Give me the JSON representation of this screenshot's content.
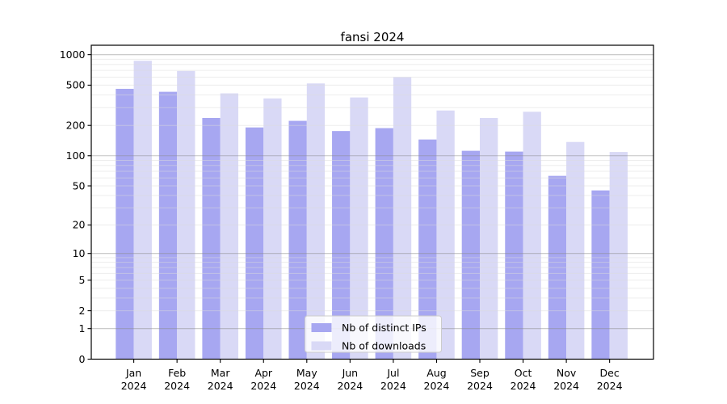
{
  "title": "fansi 2024",
  "chart_data": {
    "type": "bar",
    "title": "fansi 2024",
    "categories": [
      "Jan 2024",
      "Feb 2024",
      "Mar 2024",
      "Apr 2024",
      "May 2024",
      "Jun 2024",
      "Jul 2024",
      "Aug 2024",
      "Sep 2024",
      "Oct 2024",
      "Nov 2024",
      "Dec 2024"
    ],
    "x_tick_month": [
      "Jan",
      "Feb",
      "Mar",
      "Apr",
      "May",
      "Jun",
      "Jul",
      "Aug",
      "Sep",
      "Oct",
      "Nov",
      "Dec"
    ],
    "x_tick_year": "2024",
    "series": [
      {
        "name": "Nb of distinct IPs",
        "color": "#a7a7f1",
        "values": [
          460,
          430,
          237,
          191,
          222,
          176,
          188,
          145,
          112,
          110,
          63,
          45
        ]
      },
      {
        "name": "Nb of downloads",
        "color": "#d9d9f6",
        "values": [
          870,
          690,
          415,
          370,
          520,
          378,
          600,
          281,
          237,
          273,
          137,
          109
        ]
      }
    ],
    "y_axis": {
      "scale": "log10(1+x)",
      "tick_values": [
        0,
        1,
        2,
        5,
        10,
        20,
        50,
        100,
        200,
        500,
        1000
      ],
      "top_value": 1260
    },
    "grid": {
      "axis": "y",
      "minor_multiples": [
        2,
        3,
        4,
        5,
        6,
        7,
        8,
        9
      ],
      "major_at": [
        1,
        10,
        100,
        1000
      ],
      "minor_color": "#dcdcdc",
      "major_color": "#8a8a8a"
    },
    "legend": {
      "location": "lower center",
      "entries": [
        "Nb of distinct IPs",
        "Nb of downloads"
      ]
    }
  }
}
